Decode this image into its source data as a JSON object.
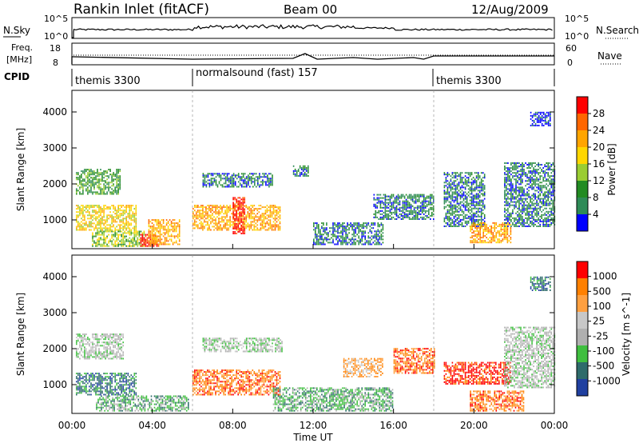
{
  "header": {
    "station": "Rankin Inlet (fitACF)",
    "beam": "Beam 00",
    "date": "12/Aug/2009"
  },
  "top_panel": {
    "left_label": "N.Sky",
    "right_label": "N.Search",
    "left_ticks": [
      "10^5",
      "10^0"
    ],
    "right_ticks": [
      "10^5",
      "10^0"
    ]
  },
  "freq_panel": {
    "left_label_1": "Freq.",
    "left_label_2": "[MHz]",
    "right_label": "Nave",
    "left_ticks": [
      "18",
      "8"
    ],
    "right_ticks": [
      "60",
      "0"
    ]
  },
  "cpid_panel": {
    "label": "CPID",
    "programs": [
      {
        "name": "themis 3300",
        "start_hour": 0
      },
      {
        "name": "normalsound (fast) 157",
        "start_hour": 6
      },
      {
        "name": "themis 3300",
        "start_hour": 18
      }
    ]
  },
  "colors": {
    "power_scale": [
      "#0000ff",
      "#2e8b57",
      "#228b22",
      "#9acd32",
      "#ffd700",
      "#ffa500",
      "#ff6600",
      "#ff0000"
    ],
    "velocity_scale": [
      "#2040a0",
      "#2e6b6b",
      "#3fbf3f",
      "#b0b0b0",
      "#c0c0c0",
      "#ffa040",
      "#ff8000",
      "#ff0000"
    ]
  },
  "chart_data": [
    {
      "type": "heatmap",
      "name": "Power",
      "ylabel": "Slant Range [km]",
      "xlabel": "Time UT",
      "x_ticks": [
        "00:00",
        "04:00",
        "08:00",
        "12:00",
        "16:00",
        "20:00",
        "00:00"
      ],
      "x_tick_hours": [
        0,
        4,
        8,
        12,
        16,
        20,
        24
      ],
      "y_ticks": [
        1000,
        2000,
        3000,
        4000
      ],
      "ylim": [
        200,
        4600
      ],
      "colorbar_label": "Power [dB]",
      "colorbar_ticks": [
        "4",
        "8",
        "12",
        "16",
        "20",
        "24",
        "28"
      ],
      "colorbar_colors": [
        "#0000ff",
        "#2e8b57",
        "#228b22",
        "#9acd32",
        "#ffd700",
        "#ffa500",
        "#ff6600",
        "#ff0000"
      ],
      "regions": [
        {
          "t0": 0.2,
          "t1": 2.4,
          "r0": 1700,
          "r1": 2400,
          "level": 2
        },
        {
          "t0": 0.2,
          "t1": 3.2,
          "r0": 700,
          "r1": 1400,
          "level": 4
        },
        {
          "t0": 1.0,
          "t1": 3.6,
          "r0": 250,
          "r1": 700,
          "level": 3
        },
        {
          "t0": 3.4,
          "t1": 4.3,
          "r0": 250,
          "r1": 600,
          "level": 7
        },
        {
          "t0": 3.8,
          "t1": 5.4,
          "r0": 300,
          "r1": 1000,
          "level": 5
        },
        {
          "t0": 6.0,
          "t1": 10.4,
          "r0": 700,
          "r1": 1400,
          "level": 5
        },
        {
          "t0": 8.0,
          "t1": 8.6,
          "r0": 600,
          "r1": 1600,
          "level": 7
        },
        {
          "t0": 6.5,
          "t1": 10.0,
          "r0": 1900,
          "r1": 2300,
          "level": 1
        },
        {
          "t0": 11.0,
          "t1": 11.8,
          "r0": 2200,
          "r1": 2500,
          "level": 1
        },
        {
          "t0": 12.0,
          "t1": 15.5,
          "r0": 300,
          "r1": 900,
          "level": 1
        },
        {
          "t0": 15.0,
          "t1": 18.0,
          "r0": 1000,
          "r1": 1700,
          "level": 1
        },
        {
          "t0": 18.5,
          "t1": 20.5,
          "r0": 800,
          "r1": 2300,
          "level": 1
        },
        {
          "t0": 19.8,
          "t1": 21.8,
          "r0": 350,
          "r1": 900,
          "level": 5
        },
        {
          "t0": 21.5,
          "t1": 24.0,
          "r0": 800,
          "r1": 2600,
          "level": 1
        },
        {
          "t0": 22.8,
          "t1": 23.8,
          "r0": 3600,
          "r1": 4000,
          "level": 0
        }
      ]
    },
    {
      "type": "heatmap",
      "name": "Velocity",
      "ylabel": "Slant Range [km]",
      "xlabel": "Time UT",
      "x_ticks": [
        "00:00",
        "04:00",
        "08:00",
        "12:00",
        "16:00",
        "20:00",
        "00:00"
      ],
      "x_tick_hours": [
        0,
        4,
        8,
        12,
        16,
        20,
        24
      ],
      "y_ticks": [
        1000,
        2000,
        3000,
        4000
      ],
      "ylim": [
        200,
        4600
      ],
      "colorbar_label": "Velocity [m s^-1]",
      "colorbar_ticks": [
        "1000",
        "500",
        "100",
        "25",
        "-25",
        "-100",
        "-500",
        "-1000"
      ],
      "colorbar_colors": [
        "#2040a0",
        "#2e6b6b",
        "#3fbf3f",
        "#b0b0b0",
        "#c8c8c8",
        "#ffa040",
        "#ff8000",
        "#ff0000"
      ],
      "regions": [
        {
          "t0": 0.2,
          "t1": 2.6,
          "r0": 1700,
          "r1": 2400,
          "level": 3
        },
        {
          "t0": 0.2,
          "t1": 3.2,
          "r0": 700,
          "r1": 1300,
          "level": 1
        },
        {
          "t0": 1.2,
          "t1": 5.8,
          "r0": 250,
          "r1": 700,
          "level": 2
        },
        {
          "t0": 6.0,
          "t1": 10.4,
          "r0": 700,
          "r1": 1400,
          "level": 6
        },
        {
          "t0": 6.5,
          "t1": 10.5,
          "r0": 1900,
          "r1": 2300,
          "level": 3
        },
        {
          "t0": 10.0,
          "t1": 16.0,
          "r0": 250,
          "r1": 900,
          "level": 2
        },
        {
          "t0": 13.5,
          "t1": 15.5,
          "r0": 1200,
          "r1": 1700,
          "level": 5
        },
        {
          "t0": 16.0,
          "t1": 18.0,
          "r0": 1300,
          "r1": 2000,
          "level": 6
        },
        {
          "t0": 18.5,
          "t1": 21.8,
          "r0": 1000,
          "r1": 1600,
          "level": 7
        },
        {
          "t0": 19.8,
          "t1": 22.5,
          "r0": 250,
          "r1": 800,
          "level": 6
        },
        {
          "t0": 21.5,
          "t1": 24.0,
          "r0": 900,
          "r1": 2600,
          "level": 3
        },
        {
          "t0": 22.8,
          "t1": 23.8,
          "r0": 3600,
          "r1": 4000,
          "level": 1
        }
      ]
    }
  ]
}
